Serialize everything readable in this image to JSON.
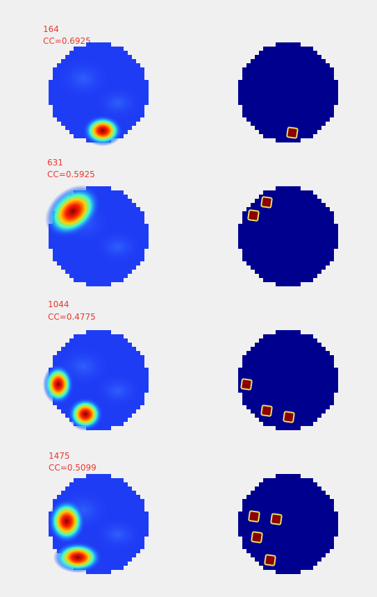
{
  "panels": [
    {
      "id": "164",
      "cc": "CC=0.6925"
    },
    {
      "id": "631",
      "cc": "CC=0.5925"
    },
    {
      "id": "1044",
      "cc": "CC=0.4775"
    },
    {
      "id": "1475",
      "cc": "CC=0.5099"
    }
  ]
}
